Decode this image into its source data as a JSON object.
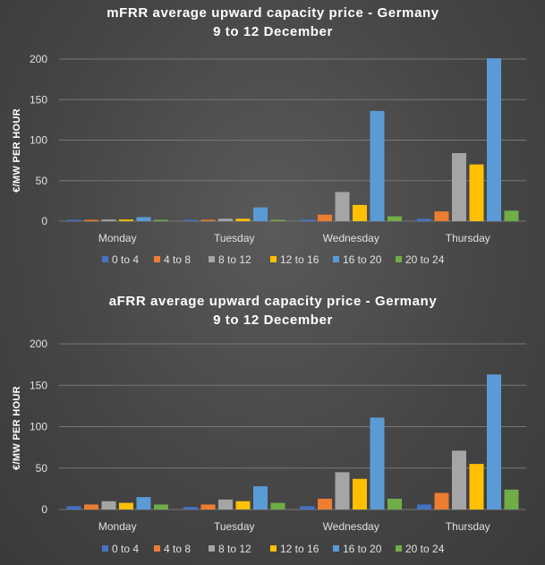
{
  "chart_data": [
    {
      "type": "bar",
      "title_line1": "mFRR average upward capacity price - Germany",
      "title_line2": "9 to 12 December",
      "ylabel": "€/MW PER HOUR",
      "ylim": [
        0,
        200
      ],
      "yticks": [
        0,
        50,
        100,
        150,
        200
      ],
      "grid": true,
      "legend": "bottom",
      "categories": [
        "Monday",
        "Tuesday",
        "Wednesday",
        "Thursday"
      ],
      "series": [
        {
          "name": "0 to 4",
          "color": "#4472c4",
          "values": [
            1,
            1,
            2,
            3
          ]
        },
        {
          "name": "4 to 8",
          "color": "#ed7d31",
          "values": [
            1,
            1,
            8,
            12
          ]
        },
        {
          "name": "8 to 12",
          "color": "#a5a5a5",
          "values": [
            2,
            3,
            36,
            84
          ]
        },
        {
          "name": "12 to 16",
          "color": "#ffc000",
          "values": [
            2,
            3,
            20,
            70
          ]
        },
        {
          "name": "16 to 20",
          "color": "#5b9bd5",
          "values": [
            5,
            17,
            136,
            201
          ]
        },
        {
          "name": "20 to 24",
          "color": "#70ad47",
          "values": [
            1,
            1,
            6,
            13
          ]
        }
      ]
    },
    {
      "type": "bar",
      "title_line1": "aFRR average upward capacity price - Germany",
      "title_line2": "9 to 12 December",
      "ylabel": "€/MW PER HOUR",
      "ylim": [
        0,
        200
      ],
      "yticks": [
        0,
        50,
        100,
        150,
        200
      ],
      "grid": true,
      "legend": "bottom",
      "categories": [
        "Monday",
        "Tuesday",
        "Wednesday",
        "Thursday"
      ],
      "series": [
        {
          "name": "0 to 4",
          "color": "#4472c4",
          "values": [
            4,
            3,
            4,
            6
          ]
        },
        {
          "name": "4 to 8",
          "color": "#ed7d31",
          "values": [
            6,
            6,
            13,
            20
          ]
        },
        {
          "name": "8 to 12",
          "color": "#a5a5a5",
          "values": [
            10,
            12,
            45,
            71
          ]
        },
        {
          "name": "12 to 16",
          "color": "#ffc000",
          "values": [
            8,
            10,
            37,
            55
          ]
        },
        {
          "name": "16 to 20",
          "color": "#5b9bd5",
          "values": [
            15,
            28,
            111,
            163
          ]
        },
        {
          "name": "20 to 24",
          "color": "#70ad47",
          "values": [
            6,
            8,
            13,
            24
          ]
        }
      ]
    }
  ]
}
